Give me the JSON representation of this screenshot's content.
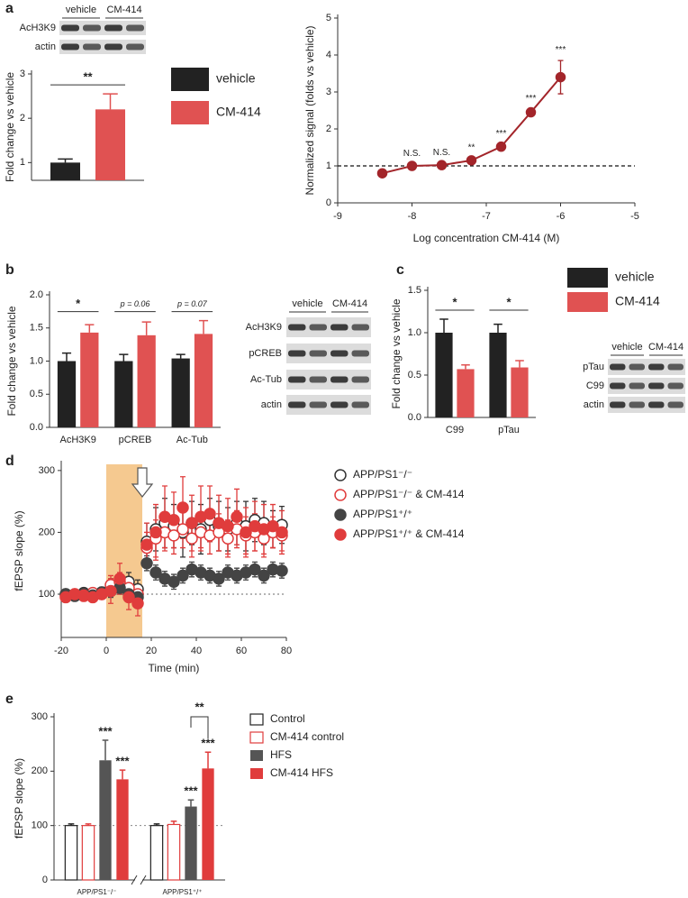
{
  "panel_labels": [
    "a",
    "b",
    "c",
    "d",
    "e"
  ],
  "blots": [
    {
      "columns": [
        "vehicle",
        "CM-414"
      ],
      "rows": [
        "AcH3K9",
        "actin"
      ]
    },
    {
      "columns": [
        "vehicle",
        "CM-414"
      ],
      "rows": [
        "AcH3K9",
        "pCREB",
        "Ac-Tub",
        "actin"
      ]
    },
    {
      "columns": [
        "vehicle",
        "CM-414"
      ],
      "rows": [
        "pTau",
        "C99",
        "actin"
      ]
    }
  ],
  "chart_data": [
    {
      "type": "bar",
      "ylabel": "Fold change vs vehicle",
      "categories": [
        null
      ],
      "series": [
        {
          "name": "vehicle",
          "color": "#222222",
          "values": [
            1.0
          ],
          "errors": [
            0.08
          ]
        },
        {
          "name": "CM-414",
          "color": "#e05252",
          "values": [
            2.2
          ],
          "errors": [
            0.35
          ]
        }
      ],
      "significance": [
        "**"
      ],
      "ylim": [
        0.6,
        3
      ],
      "yticks": [
        1,
        2,
        3
      ]
    },
    {
      "type": "line",
      "xlabel": "Log concentration CM-414 (M)",
      "ylabel": "Normalized signal (folds vs vehicle)",
      "x": [
        -8.4,
        -8,
        -7.6,
        -7.2,
        -6.8,
        -6.4,
        -6
      ],
      "series": [
        {
          "color": "#a3252a",
          "values": [
            0.8,
            1.0,
            1.02,
            1.15,
            1.52,
            2.45,
            3.4
          ],
          "errors": [
            0.04,
            0.04,
            0.05,
            0.05,
            0.06,
            0.08,
            0.45
          ],
          "point_labels": [
            null,
            "N.S.",
            "N.S.",
            "**",
            "***",
            "***",
            "***"
          ]
        }
      ],
      "xlim": [
        -9,
        -5
      ],
      "xticks": [
        -9,
        -8,
        -7,
        -6,
        -5
      ],
      "ylim": [
        0,
        5
      ],
      "yticks": [
        0,
        1,
        2,
        3,
        4,
        5
      ],
      "hline": 1
    },
    {
      "type": "bar",
      "ylabel": "Fold change vs vehicle",
      "categories": [
        "AcH3K9",
        "pCREB",
        "Ac-Tub"
      ],
      "series": [
        {
          "color": "#222222",
          "values": [
            1.0,
            1.0,
            1.04
          ],
          "errors": [
            0.12,
            0.1,
            0.06
          ]
        },
        {
          "color": "#e05252",
          "values": [
            1.43,
            1.39,
            1.41
          ],
          "errors": [
            0.12,
            0.2,
            0.2
          ]
        }
      ],
      "significance": [
        "*",
        "p = 0.06",
        "p = 0.07"
      ],
      "ylim": [
        0,
        2
      ],
      "yticks": [
        {
          "value": 0,
          "label": "0.0"
        },
        0.5,
        {
          "value": 1,
          "label": "1.0"
        },
        1.5,
        {
          "value": 2,
          "label": "2.0"
        }
      ]
    },
    {
      "type": "bar",
      "ylabel": "Fold change vs vehicle",
      "categories": [
        "C99",
        "pTau"
      ],
      "series": [
        {
          "name": "vehicle",
          "color": "#222222",
          "values": [
            1.0,
            1.0
          ],
          "errors": [
            0.16,
            0.1
          ]
        },
        {
          "name": "CM-414",
          "color": "#e05252",
          "values": [
            0.57,
            0.59
          ],
          "errors": [
            0.05,
            0.08
          ]
        }
      ],
      "significance": [
        "*",
        "*"
      ],
      "ylim": [
        0,
        1.5
      ],
      "yticks": [
        {
          "value": 0,
          "label": "0.0"
        },
        0.5,
        {
          "value": 1,
          "label": "1.0"
        },
        1.5
      ]
    },
    {
      "type": "line",
      "xlabel": "Time (min)",
      "ylabel": "fEPSP slope (%)",
      "x": [
        -18,
        -14,
        -10,
        -6,
        -2,
        2,
        6,
        10,
        14,
        18,
        22,
        26,
        30,
        34,
        38,
        42,
        46,
        50,
        54,
        58,
        62,
        66,
        70,
        74,
        78
      ],
      "series": [
        {
          "name": "APP/PS1⁻/⁻",
          "color": "#333333",
          "filled": false,
          "values": [
            100,
            98,
            102,
            100,
            103,
            110,
            115,
            120,
            108,
            185,
            205,
            215,
            210,
            200,
            215,
            205,
            220,
            210,
            205,
            215,
            210,
            220,
            215,
            205,
            212
          ],
          "errors": [
            8,
            8,
            8,
            8,
            8,
            15,
            15,
            15,
            15,
            30,
            35,
            40,
            35,
            40,
            35,
            40,
            35,
            40,
            35,
            35,
            40,
            35,
            35,
            30,
            30
          ]
        },
        {
          "name": "APP/PS1⁻/⁻ & CM-414",
          "color": "#e03c3c",
          "filled": false,
          "values": [
            98,
            100,
            97,
            102,
            100,
            115,
            120,
            110,
            100,
            175,
            190,
            200,
            195,
            205,
            190,
            200,
            195,
            200,
            190,
            205,
            195,
            200,
            190,
            200,
            195
          ],
          "errors": [
            8,
            8,
            8,
            8,
            8,
            15,
            15,
            15,
            15,
            25,
            30,
            30,
            30,
            30,
            30,
            30,
            30,
            30,
            30,
            30,
            30,
            30,
            30,
            25,
            25
          ]
        },
        {
          "name": "APP/PS1⁺/⁺",
          "color": "#444444",
          "filled": true,
          "values": [
            100,
            97,
            100,
            98,
            102,
            105,
            110,
            100,
            95,
            150,
            135,
            125,
            120,
            130,
            140,
            135,
            130,
            125,
            135,
            130,
            135,
            140,
            130,
            140,
            138
          ],
          "errors": [
            6,
            6,
            6,
            6,
            6,
            10,
            10,
            10,
            10,
            12,
            12,
            12,
            12,
            12,
            12,
            12,
            12,
            12,
            12,
            12,
            12,
            12,
            12,
            12,
            12
          ]
        },
        {
          "name": "APP/PS1⁺/⁺ & CM-414",
          "color": "#e03c3c",
          "filled": true,
          "values": [
            95,
            100,
            98,
            95,
            100,
            105,
            125,
            95,
            85,
            180,
            200,
            225,
            220,
            240,
            215,
            225,
            230,
            215,
            210,
            225,
            200,
            210,
            205,
            210,
            200
          ],
          "errors": [
            8,
            8,
            8,
            8,
            8,
            20,
            25,
            20,
            20,
            35,
            45,
            50,
            45,
            50,
            45,
            50,
            45,
            45,
            45,
            45,
            40,
            40,
            40,
            35,
            35
          ]
        }
      ],
      "xlim": [
        -20,
        80
      ],
      "xticks": [
        -20,
        0,
        20,
        40,
        60,
        80
      ],
      "ylim": [
        30,
        310
      ],
      "yticks": [
        100,
        200,
        300
      ],
      "hline": 100,
      "shade": [
        0,
        16
      ]
    },
    {
      "type": "bar",
      "ylabel": "fEPSP slope (%)",
      "categories": [
        "APP/PS1⁻/⁻",
        "APP/PS1⁺/⁺"
      ],
      "series": [
        {
          "name": "Control",
          "color": "#222222",
          "filled": false,
          "values": [
            100,
            100
          ],
          "errors": [
            3,
            3
          ]
        },
        {
          "name": "CM-414 control",
          "color": "#e03c3c",
          "filled": false,
          "values": [
            100,
            102
          ],
          "errors": [
            3,
            6
          ]
        },
        {
          "name": "HFS",
          "color": "#555555",
          "filled": true,
          "values": [
            220,
            135
          ],
          "errors": [
            37,
            12
          ],
          "significance": [
            "***",
            "***"
          ]
        },
        {
          "name": "CM-414 HFS",
          "color": "#e03c3c",
          "filled": true,
          "values": [
            185,
            205
          ],
          "errors": [
            17,
            30
          ],
          "significance": [
            "***",
            "***"
          ]
        }
      ],
      "comparison": "**",
      "ylim": [
        0,
        300
      ],
      "yticks": [
        0,
        100,
        200,
        300
      ],
      "hline": 100
    }
  ]
}
